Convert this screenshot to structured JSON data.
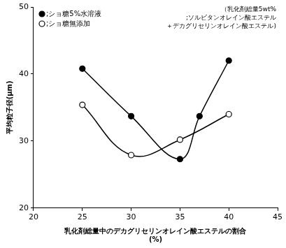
{
  "chart_data": {
    "type": "line",
    "xlabel": [
      "乳化剤総量中のデカグリセリンオレイン酸エステルの割合",
      "(%)"
    ],
    "ylabel": "平均粒子径(μm)",
    "annotation": [
      "（乳化剤総量5wt%",
      ";ソルビタンオレイン酸エステル",
      "＋デカグリセリンオレイン酸エステル)"
    ],
    "series": [
      {
        "name": ";ショ糖5%水溶液",
        "color": "#000000",
        "marker": "filled_circle",
        "x": [
          25,
          30,
          35,
          37,
          40
        ],
        "values": [
          40.8,
          33.7,
          27.3,
          33.7,
          42.0
        ]
      },
      {
        "name": ";ショ糖無添加",
        "color": "#000000",
        "marker": "open_circle",
        "x": [
          25,
          30,
          35,
          40
        ],
        "values": [
          35.4,
          27.9,
          30.2,
          34.0
        ]
      }
    ],
    "xlim": [
      20,
      45
    ],
    "xticks": [
      20,
      25,
      30,
      35,
      40,
      45
    ],
    "ylim": [
      20,
      50
    ],
    "yticks": [
      20,
      30,
      40,
      50
    ],
    "grid": false,
    "legend": "upper left"
  }
}
